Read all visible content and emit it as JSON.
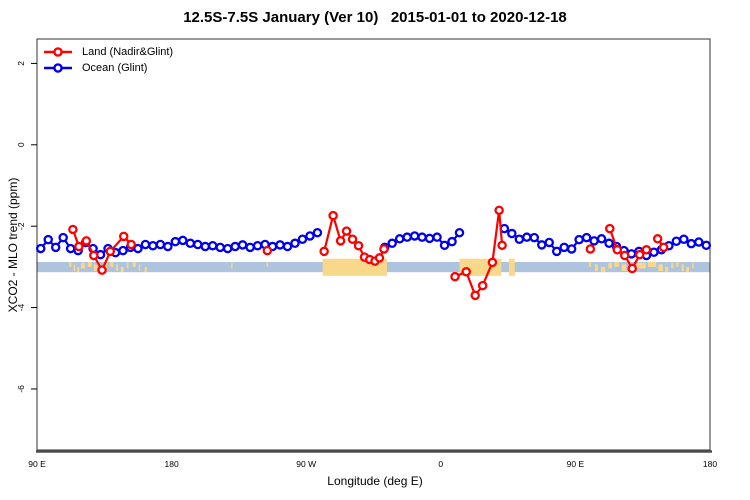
{
  "page": {
    "title": "12.5S-7.5S January (Ver 10)   2015-01-01 to 2020-12-18"
  },
  "chart_data": {
    "type": "line",
    "title": "12.5S-7.5S January (Ver 10)   2015-01-01 to 2020-12-18",
    "xlabel": "Longitude (deg E)",
    "ylabel": "XCO2 - MLO trend (ppm)",
    "xlim": [
      90,
      540
    ],
    "ylim": [
      -7.5,
      2.6
    ],
    "grid": false,
    "legend_position": "top-left",
    "x_ticks": [
      {
        "value": 90,
        "label": "90 E"
      },
      {
        "value": 180,
        "label": "180"
      },
      {
        "value": 270,
        "label": "90 W"
      },
      {
        "value": 360,
        "label": "0"
      },
      {
        "value": 450,
        "label": "90 E"
      },
      {
        "value": 540,
        "label": "180"
      }
    ],
    "y_ticks": [
      {
        "value": 2,
        "label": "2"
      },
      {
        "value": 0,
        "label": "0"
      },
      {
        "value": -2,
        "label": "-2"
      },
      {
        "value": -4,
        "label": "-4"
      },
      {
        "value": -6,
        "label": "-6"
      }
    ],
    "ocean_band": {
      "top": -2.88,
      "bottom": -3.13,
      "color": "#aec3dd"
    },
    "land_color": "#f8d88a",
    "land_patches": [
      [
        111.5,
        113,
        "speck"
      ],
      [
        114.5,
        115.5,
        "speck"
      ],
      [
        117,
        118.2,
        "speck"
      ],
      [
        119.5,
        122,
        "speck"
      ],
      [
        124,
        126.5,
        "speck"
      ],
      [
        128,
        130,
        "speck"
      ],
      [
        131.5,
        133,
        "speck"
      ],
      [
        135,
        137,
        "speck"
      ],
      [
        139,
        141,
        "speck"
      ],
      [
        143,
        144.2,
        "speck"
      ],
      [
        146,
        148,
        "speck"
      ],
      [
        150,
        151.2,
        "speck"
      ],
      [
        154,
        156,
        "speck"
      ],
      [
        158,
        159,
        "speck"
      ],
      [
        162,
        163.5,
        "speck"
      ],
      [
        219.8,
        220.8,
        "speck"
      ],
      [
        243.5,
        244.5,
        "speck"
      ],
      [
        281,
        324,
        "solid"
      ],
      [
        372.5,
        400.5,
        "solid"
      ],
      [
        405.5,
        409.5,
        "solid"
      ],
      [
        459,
        460.5,
        "speck"
      ],
      [
        463,
        465,
        "speck"
      ],
      [
        467,
        470,
        "speck"
      ],
      [
        472,
        474.5,
        "speck"
      ],
      [
        476,
        479,
        "speck"
      ],
      [
        481,
        484,
        "speck"
      ],
      [
        486,
        489.5,
        "speck"
      ],
      [
        491,
        497,
        "speck"
      ],
      [
        498.5,
        504,
        "speck"
      ],
      [
        505.5,
        508.5,
        "speck"
      ],
      [
        510,
        512,
        "speck"
      ],
      [
        514,
        515.5,
        "speck"
      ],
      [
        517.5,
        519,
        "speck"
      ],
      [
        521,
        522.5,
        "speck"
      ],
      [
        524,
        526,
        "speck"
      ],
      [
        528,
        529,
        "speck"
      ]
    ],
    "series": [
      {
        "id": "land",
        "name": "Land (Nadir&Glint)",
        "color": "#ff0000",
        "segments": [
          [
            [
              114,
              -2.08
            ],
            [
              118,
              -2.5
            ],
            [
              123,
              -2.36
            ],
            [
              128,
              -2.72
            ],
            [
              133.5,
              -3.08
            ],
            [
              139,
              -2.62
            ],
            [
              148,
              -2.25
            ],
            [
              153,
              -2.45
            ]
          ],
          [
            [
              244,
              -2.6
            ]
          ],
          [
            [
              282,
              -2.62
            ],
            [
              288,
              -1.74
            ],
            [
              293,
              -2.36
            ],
            [
              297,
              -2.12
            ],
            [
              301,
              -2.32
            ],
            [
              305,
              -2.48
            ],
            [
              309,
              -2.76
            ],
            [
              312.5,
              -2.82
            ],
            [
              316,
              -2.86
            ],
            [
              319,
              -2.78
            ],
            [
              322,
              -2.56
            ]
          ],
          [
            [
              369.5,
              -3.24
            ],
            [
              377,
              -3.12
            ],
            [
              383,
              -3.7
            ],
            [
              388,
              -3.46
            ],
            [
              394.5,
              -2.89
            ],
            [
              399,
              -1.61
            ],
            [
              401,
              -2.47
            ]
          ],
          [
            [
              460,
              -2.56
            ]
          ],
          [
            [
              473,
              -2.06
            ],
            [
              478,
              -2.58
            ],
            [
              483,
              -2.72
            ],
            [
              488,
              -3.04
            ],
            [
              493,
              -2.7
            ],
            [
              497.5,
              -2.58
            ]
          ],
          [
            [
              505,
              -2.31
            ],
            [
              509,
              -2.52
            ]
          ]
        ]
      },
      {
        "id": "ocean",
        "name": "Ocean (Glint)",
        "color": "#0000ee",
        "segments": [
          [
            [
              92.5,
              -2.55
            ],
            [
              97.5,
              -2.33
            ],
            [
              102.5,
              -2.52
            ],
            [
              107.5,
              -2.28
            ],
            [
              112.5,
              -2.55
            ],
            [
              117.5,
              -2.6
            ],
            [
              122.5,
              -2.4
            ],
            [
              127.5,
              -2.55
            ],
            [
              132.5,
              -2.7
            ],
            [
              137.5,
              -2.55
            ],
            [
              142.5,
              -2.65
            ],
            [
              147.5,
              -2.6
            ],
            [
              152.5,
              -2.52
            ],
            [
              157.5,
              -2.55
            ],
            [
              162.5,
              -2.45
            ],
            [
              167.5,
              -2.48
            ],
            [
              172.5,
              -2.45
            ],
            [
              177.5,
              -2.5
            ],
            [
              182.5,
              -2.38
            ],
            [
              187.5,
              -2.35
            ],
            [
              192.5,
              -2.42
            ],
            [
              197.5,
              -2.45
            ],
            [
              202.5,
              -2.5
            ],
            [
              207.5,
              -2.48
            ],
            [
              212.5,
              -2.52
            ],
            [
              217.5,
              -2.55
            ],
            [
              222.5,
              -2.5
            ],
            [
              227.5,
              -2.46
            ],
            [
              232.5,
              -2.52
            ],
            [
              237.5,
              -2.48
            ],
            [
              242.5,
              -2.45
            ],
            [
              247.5,
              -2.5
            ],
            [
              252.5,
              -2.46
            ],
            [
              257.5,
              -2.5
            ],
            [
              262.5,
              -2.42
            ],
            [
              267.5,
              -2.32
            ],
            [
              272.5,
              -2.24
            ],
            [
              277.5,
              -2.16
            ]
          ],
          [
            [
              322.5,
              -2.52
            ],
            [
              327.5,
              -2.42
            ],
            [
              332.5,
              -2.31
            ],
            [
              337.5,
              -2.27
            ],
            [
              342.5,
              -2.24
            ],
            [
              347.5,
              -2.27
            ],
            [
              352.5,
              -2.3
            ],
            [
              357.5,
              -2.27
            ],
            [
              362.5,
              -2.47
            ],
            [
              367.5,
              -2.38
            ],
            [
              372.5,
              -2.16
            ]
          ],
          [
            [
              402.5,
              -2.06
            ],
            [
              407.5,
              -2.18
            ],
            [
              412.5,
              -2.32
            ],
            [
              417.5,
              -2.27
            ],
            [
              422.5,
              -2.28
            ],
            [
              427.5,
              -2.46
            ],
            [
              432.5,
              -2.4
            ],
            [
              437.5,
              -2.62
            ],
            [
              442.5,
              -2.52
            ],
            [
              447.5,
              -2.56
            ],
            [
              452.5,
              -2.33
            ],
            [
              457.5,
              -2.28
            ],
            [
              462.5,
              -2.36
            ],
            [
              467.5,
              -2.31
            ],
            [
              472.5,
              -2.42
            ],
            [
              477.5,
              -2.5
            ],
            [
              482.5,
              -2.6
            ],
            [
              487.5,
              -2.68
            ],
            [
              492.5,
              -2.62
            ],
            [
              497.5,
              -2.72
            ],
            [
              502.5,
              -2.64
            ],
            [
              507.5,
              -2.58
            ],
            [
              512.5,
              -2.48
            ],
            [
              517.5,
              -2.37
            ],
            [
              522.5,
              -2.32
            ],
            [
              527.5,
              -2.43
            ],
            [
              532.5,
              -2.39
            ],
            [
              537.5,
              -2.47
            ]
          ]
        ]
      }
    ]
  }
}
